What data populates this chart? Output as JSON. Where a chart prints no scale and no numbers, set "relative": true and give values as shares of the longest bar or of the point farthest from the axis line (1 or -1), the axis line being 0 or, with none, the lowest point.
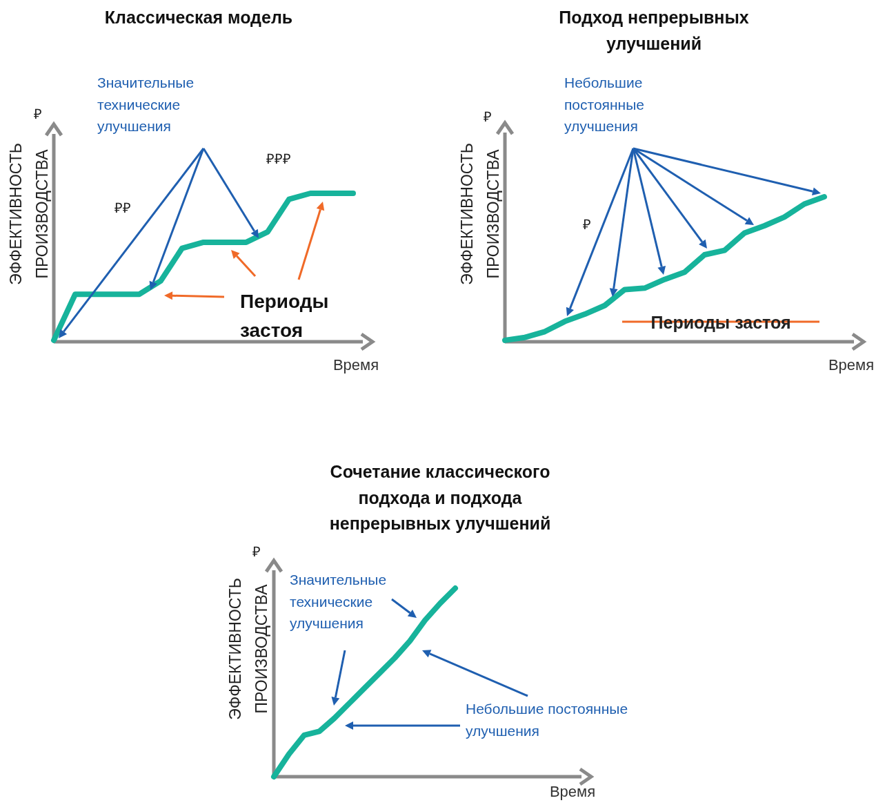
{
  "chart_data": [
    {
      "type": "line",
      "title": "Классическая модель",
      "xlabel": "Время",
      "ylabel": "ЭФФЕКТИВНОСТЬ\nПРОИЗВОДСТВА",
      "relative": true,
      "categories": [
        null,
        null,
        null,
        null,
        null,
        null,
        null,
        null,
        null,
        null,
        null,
        null,
        null,
        null,
        null
      ],
      "series": [
        {
          "color": "#17b39b",
          "values": [
            0.01,
            0.32,
            0.32,
            0.32,
            0.32,
            0.41,
            0.63,
            0.67,
            0.67,
            0.67,
            0.74,
            0.96,
            1,
            1,
            1
          ]
        }
      ],
      "annotations": [
        "₽",
        "Значительные\nтехнические\nулучшения",
        "₽₽",
        "₽₽₽",
        "Периоды\nзастоя"
      ]
    },
    {
      "type": "line",
      "title": "Подход непрерывных\nулучшений",
      "xlabel": "Время",
      "ylabel": "ЭФФЕКТИВНОСТЬ\nПРОИЗВОДСТВА",
      "relative": true,
      "categories": [
        null,
        null,
        null,
        null,
        null,
        null,
        null,
        null,
        null,
        null,
        null,
        null,
        null,
        null,
        null,
        null,
        null
      ],
      "series": [
        {
          "color": "#17b39b",
          "values": [
            0.01,
            0.03,
            0.07,
            0.14,
            0.19,
            0.25,
            0.36,
            0.37,
            0.43,
            0.48,
            0.6,
            0.63,
            0.75,
            0.8,
            0.86,
            0.95,
            1
          ]
        }
      ],
      "annotations": [
        "₽",
        "Небольшие\nпостоянные\nулучшения",
        "₽",
        "Периоды  застоя"
      ]
    },
    {
      "type": "line",
      "title": "Сочетание классического\nподхода и подхода\nнепрерывных улучшений",
      "xlabel": "Время",
      "ylabel": "ЭФФЕКТИВНОСТЬ\nПРОИЗВОДСТВА",
      "relative": true,
      "categories": [
        null,
        null,
        null,
        null,
        null,
        null,
        null,
        null,
        null,
        null,
        null,
        null,
        null
      ],
      "series": [
        {
          "color": "#17b39b",
          "values": [
            0,
            0.12,
            0.22,
            0.24,
            0.31,
            0.39,
            0.47,
            0.55,
            0.63,
            0.72,
            0.83,
            0.92,
            1
          ]
        }
      ],
      "annotations": [
        "₽",
        "Значительные\nтехнические\nулучшения",
        "Небольшие постоянные\nулучшения"
      ]
    }
  ]
}
